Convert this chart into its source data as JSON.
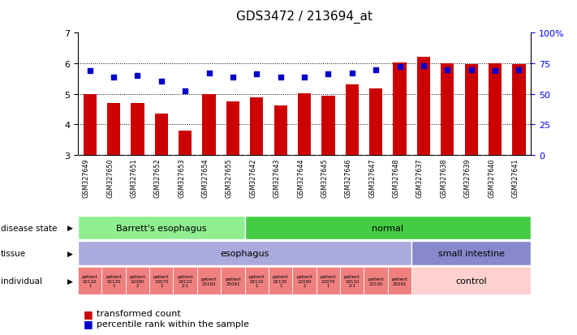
{
  "title": "GDS3472 / 213694_at",
  "samples": [
    "GSM327649",
    "GSM327650",
    "GSM327651",
    "GSM327652",
    "GSM327653",
    "GSM327654",
    "GSM327655",
    "GSM327642",
    "GSM327643",
    "GSM327644",
    "GSM327645",
    "GSM327646",
    "GSM327647",
    "GSM327648",
    "GSM327637",
    "GSM327638",
    "GSM327639",
    "GSM327640",
    "GSM327641"
  ],
  "bar_values_all": [
    5.0,
    4.7,
    4.7,
    4.35,
    3.8,
    5.0,
    4.75,
    4.88,
    4.62,
    5.02,
    4.95,
    5.32,
    5.18,
    6.02,
    6.22,
    6.0,
    5.98,
    6.0,
    5.98
  ],
  "dot_values": [
    5.75,
    5.55,
    5.6,
    5.42,
    5.1,
    5.68,
    5.55,
    5.65,
    5.55,
    5.55,
    5.65,
    5.68,
    5.78,
    5.9,
    5.92,
    5.78,
    5.8,
    5.75,
    5.78
  ],
  "ylim_left": [
    3,
    7
  ],
  "ylim_right": [
    0,
    100
  ],
  "yticks_left": [
    3,
    4,
    5,
    6,
    7
  ],
  "yticks_right": [
    0,
    25,
    50,
    75,
    100
  ],
  "ytick_labels_right": [
    "0",
    "25",
    "50",
    "75",
    "100%"
  ],
  "bar_color": "#cc0000",
  "dot_color": "#0000cc",
  "bar_bottom": 3.0,
  "n_samples": 19,
  "legend_bar": "transformed count",
  "legend_dot": "percentile rank within the sample",
  "ds_splits": [
    [
      0,
      7,
      "Barrett's esophagus",
      "#90ee90"
    ],
    [
      7,
      19,
      "normal",
      "#44cc44"
    ]
  ],
  "ti_splits": [
    [
      0,
      14,
      "esophagus",
      "#aaaadd"
    ],
    [
      14,
      19,
      "small intestine",
      "#8888cc"
    ]
  ],
  "ind_labels": [
    "patient\n02110\n1",
    "patient\n02130\n1",
    "patient\n12090\n2",
    "patient\n13070\n1",
    "patient\n19110\n2-1",
    "patient\n23100",
    "patient\n25091",
    "patient\n02110\n1",
    "patient\n02130\n1",
    "patient\n12090\n2",
    "patient\n13070\n1",
    "patient\n19110\n2-1",
    "patient\n23100",
    "patient\n25091"
  ],
  "ind_patient_color": "#f08080",
  "ind_control_color": "#ffd0d0",
  "tick_bg_color": "#cccccc"
}
